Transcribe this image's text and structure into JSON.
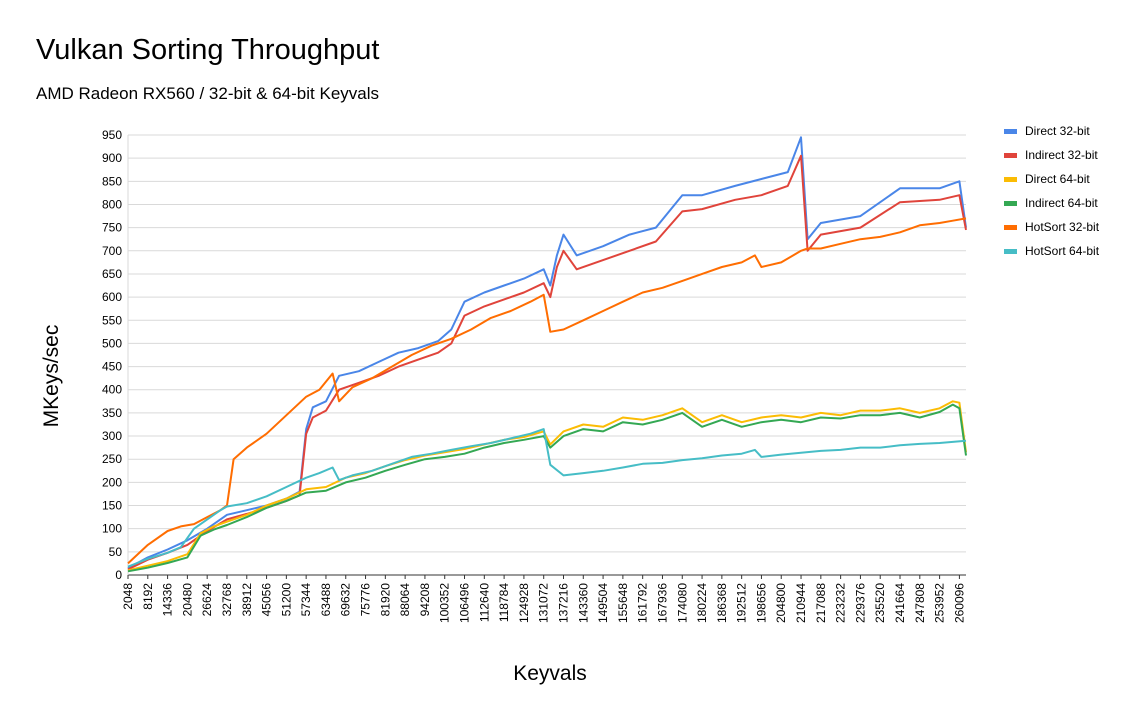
{
  "chart_data": {
    "type": "line",
    "title": "Vulkan Sorting Throughput",
    "subtitle": "AMD Radeon RX560 / 32-bit & 64-bit Keyvals",
    "xlabel": "Keyvals",
    "ylabel": "MKeys/sec",
    "ylim": [
      0,
      950
    ],
    "yticks": [
      0,
      50,
      100,
      150,
      200,
      250,
      300,
      350,
      400,
      450,
      500,
      550,
      600,
      650,
      700,
      750,
      800,
      850,
      900,
      950
    ],
    "x_range": [
      2048,
      262144
    ],
    "x_step": 2048,
    "xtick_labels": [
      "2048",
      "8192",
      "14336",
      "20480",
      "26624",
      "32768",
      "38912",
      "45056",
      "51200",
      "57344",
      "63488",
      "69632",
      "75776",
      "81920",
      "88064",
      "94208",
      "100352",
      "106496",
      "112640",
      "118784",
      "124928",
      "131072",
      "137216",
      "143360",
      "149504",
      "155648",
      "161792",
      "167936",
      "174080",
      "180224",
      "186368",
      "192512",
      "198656",
      "204800",
      "210944",
      "217088",
      "223232",
      "229376",
      "235520",
      "241664",
      "247808",
      "253952",
      "260096"
    ],
    "grid": true,
    "legend_position": "right",
    "series": [
      {
        "name": "Direct 32-bit",
        "color": "#4a86e8",
        "points": [
          [
            2048,
            15
          ],
          [
            8192,
            38
          ],
          [
            14336,
            55
          ],
          [
            20480,
            75
          ],
          [
            26624,
            100
          ],
          [
            32768,
            130
          ],
          [
            38912,
            140
          ],
          [
            45056,
            150
          ],
          [
            51200,
            165
          ],
          [
            55296,
            180
          ],
          [
            57344,
            315
          ],
          [
            59392,
            362
          ],
          [
            63488,
            375
          ],
          [
            67584,
            430
          ],
          [
            73728,
            440
          ],
          [
            79872,
            460
          ],
          [
            86016,
            480
          ],
          [
            92160,
            490
          ],
          [
            98304,
            505
          ],
          [
            102400,
            530
          ],
          [
            106496,
            590
          ],
          [
            112640,
            610
          ],
          [
            118784,
            625
          ],
          [
            124928,
            640
          ],
          [
            131072,
            660
          ],
          [
            133120,
            625
          ],
          [
            135168,
            690
          ],
          [
            137216,
            735
          ],
          [
            141312,
            690
          ],
          [
            149504,
            710
          ],
          [
            157696,
            735
          ],
          [
            165888,
            750
          ],
          [
            174080,
            820
          ],
          [
            180224,
            820
          ],
          [
            190464,
            840
          ],
          [
            198656,
            855
          ],
          [
            206848,
            870
          ],
          [
            210944,
            945
          ],
          [
            212992,
            725
          ],
          [
            217088,
            760
          ],
          [
            229376,
            775
          ],
          [
            241664,
            835
          ],
          [
            253952,
            835
          ],
          [
            260096,
            850
          ],
          [
            262144,
            750
          ]
        ]
      },
      {
        "name": "Indirect 32-bit",
        "color": "#e0443b",
        "points": [
          [
            2048,
            12
          ],
          [
            8192,
            33
          ],
          [
            14336,
            48
          ],
          [
            20480,
            65
          ],
          [
            26624,
            95
          ],
          [
            32768,
            120
          ],
          [
            38912,
            132
          ],
          [
            45056,
            145
          ],
          [
            51200,
            160
          ],
          [
            55296,
            172
          ],
          [
            57344,
            305
          ],
          [
            59392,
            340
          ],
          [
            63488,
            355
          ],
          [
            67584,
            400
          ],
          [
            73728,
            415
          ],
          [
            79872,
            430
          ],
          [
            86016,
            450
          ],
          [
            92160,
            465
          ],
          [
            98304,
            480
          ],
          [
            102400,
            500
          ],
          [
            106496,
            560
          ],
          [
            112640,
            580
          ],
          [
            118784,
            595
          ],
          [
            124928,
            610
          ],
          [
            131072,
            630
          ],
          [
            133120,
            600
          ],
          [
            135168,
            665
          ],
          [
            137216,
            700
          ],
          [
            141312,
            660
          ],
          [
            149504,
            680
          ],
          [
            157696,
            700
          ],
          [
            165888,
            720
          ],
          [
            174080,
            785
          ],
          [
            180224,
            790
          ],
          [
            190464,
            810
          ],
          [
            198656,
            820
          ],
          [
            206848,
            840
          ],
          [
            210944,
            905
          ],
          [
            212992,
            700
          ],
          [
            217088,
            735
          ],
          [
            229376,
            750
          ],
          [
            241664,
            805
          ],
          [
            253952,
            810
          ],
          [
            260096,
            820
          ],
          [
            262144,
            745
          ]
        ]
      },
      {
        "name": "Direct 64-bit",
        "color": "#fbbc04",
        "points": [
          [
            2048,
            10
          ],
          [
            8192,
            20
          ],
          [
            14336,
            30
          ],
          [
            20480,
            45
          ],
          [
            24576,
            90
          ],
          [
            28672,
            105
          ],
          [
            32768,
            115
          ],
          [
            38912,
            130
          ],
          [
            45056,
            150
          ],
          [
            51200,
            165
          ],
          [
            57344,
            185
          ],
          [
            63488,
            190
          ],
          [
            69632,
            210
          ],
          [
            75776,
            220
          ],
          [
            81920,
            235
          ],
          [
            88064,
            248
          ],
          [
            94208,
            258
          ],
          [
            100352,
            265
          ],
          [
            106496,
            272
          ],
          [
            112640,
            282
          ],
          [
            118784,
            292
          ],
          [
            124928,
            298
          ],
          [
            131072,
            310
          ],
          [
            133120,
            282
          ],
          [
            137216,
            310
          ],
          [
            143360,
            325
          ],
          [
            149504,
            320
          ],
          [
            155648,
            340
          ],
          [
            161792,
            335
          ],
          [
            167936,
            345
          ],
          [
            174080,
            360
          ],
          [
            180224,
            330
          ],
          [
            186368,
            345
          ],
          [
            192512,
            330
          ],
          [
            198656,
            340
          ],
          [
            204800,
            345
          ],
          [
            210944,
            340
          ],
          [
            217088,
            350
          ],
          [
            223232,
            345
          ],
          [
            229376,
            355
          ],
          [
            235520,
            355
          ],
          [
            241664,
            360
          ],
          [
            247808,
            350
          ],
          [
            253952,
            360
          ],
          [
            258048,
            375
          ],
          [
            260096,
            372
          ],
          [
            262144,
            265
          ]
        ]
      },
      {
        "name": "Indirect 64-bit",
        "color": "#34a853",
        "points": [
          [
            2048,
            8
          ],
          [
            8192,
            16
          ],
          [
            14336,
            26
          ],
          [
            20480,
            38
          ],
          [
            24576,
            85
          ],
          [
            28672,
            98
          ],
          [
            32768,
            108
          ],
          [
            38912,
            125
          ],
          [
            45056,
            145
          ],
          [
            51200,
            160
          ],
          [
            57344,
            178
          ],
          [
            63488,
            182
          ],
          [
            69632,
            200
          ],
          [
            75776,
            210
          ],
          [
            81920,
            225
          ],
          [
            88064,
            238
          ],
          [
            94208,
            250
          ],
          [
            100352,
            255
          ],
          [
            106496,
            262
          ],
          [
            112640,
            275
          ],
          [
            118784,
            285
          ],
          [
            124928,
            292
          ],
          [
            131072,
            300
          ],
          [
            133120,
            275
          ],
          [
            137216,
            300
          ],
          [
            143360,
            315
          ],
          [
            149504,
            310
          ],
          [
            155648,
            330
          ],
          [
            161792,
            325
          ],
          [
            167936,
            335
          ],
          [
            174080,
            350
          ],
          [
            180224,
            320
          ],
          [
            186368,
            335
          ],
          [
            192512,
            320
          ],
          [
            198656,
            330
          ],
          [
            204800,
            335
          ],
          [
            210944,
            330
          ],
          [
            217088,
            340
          ],
          [
            223232,
            338
          ],
          [
            229376,
            345
          ],
          [
            235520,
            345
          ],
          [
            241664,
            350
          ],
          [
            247808,
            340
          ],
          [
            253952,
            352
          ],
          [
            258048,
            368
          ],
          [
            260096,
            360
          ],
          [
            262144,
            258
          ]
        ]
      },
      {
        "name": "HotSort 32-bit",
        "color": "#ff6d01",
        "points": [
          [
            2048,
            25
          ],
          [
            8192,
            65
          ],
          [
            14336,
            95
          ],
          [
            18432,
            105
          ],
          [
            22528,
            110
          ],
          [
            26624,
            125
          ],
          [
            30720,
            140
          ],
          [
            32768,
            150
          ],
          [
            34816,
            250
          ],
          [
            38912,
            275
          ],
          [
            45056,
            305
          ],
          [
            51200,
            345
          ],
          [
            57344,
            385
          ],
          [
            61440,
            400
          ],
          [
            65536,
            435
          ],
          [
            67584,
            375
          ],
          [
            71680,
            405
          ],
          [
            77824,
            425
          ],
          [
            83968,
            450
          ],
          [
            90112,
            475
          ],
          [
            96256,
            495
          ],
          [
            102400,
            510
          ],
          [
            108544,
            530
          ],
          [
            114688,
            555
          ],
          [
            120832,
            570
          ],
          [
            126976,
            590
          ],
          [
            131072,
            605
          ],
          [
            133120,
            525
          ],
          [
            137216,
            530
          ],
          [
            143360,
            550
          ],
          [
            149504,
            570
          ],
          [
            155648,
            590
          ],
          [
            161792,
            610
          ],
          [
            167936,
            620
          ],
          [
            174080,
            635
          ],
          [
            180224,
            650
          ],
          [
            186368,
            665
          ],
          [
            192512,
            675
          ],
          [
            196608,
            690
          ],
          [
            198656,
            665
          ],
          [
            204800,
            675
          ],
          [
            210944,
            700
          ],
          [
            212992,
            705
          ],
          [
            217088,
            705
          ],
          [
            223232,
            715
          ],
          [
            229376,
            725
          ],
          [
            235520,
            730
          ],
          [
            241664,
            740
          ],
          [
            247808,
            755
          ],
          [
            253952,
            760
          ],
          [
            258048,
            765
          ],
          [
            262144,
            770
          ]
        ]
      },
      {
        "name": "HotSort 64-bit",
        "color": "#46bdc6",
        "points": [
          [
            2048,
            18
          ],
          [
            8192,
            35
          ],
          [
            14336,
            48
          ],
          [
            18432,
            60
          ],
          [
            22528,
            100
          ],
          [
            26624,
            120
          ],
          [
            30720,
            140
          ],
          [
            32768,
            148
          ],
          [
            38912,
            155
          ],
          [
            45056,
            170
          ],
          [
            51200,
            190
          ],
          [
            57344,
            210
          ],
          [
            61440,
            220
          ],
          [
            65536,
            232
          ],
          [
            67584,
            205
          ],
          [
            71680,
            215
          ],
          [
            77824,
            225
          ],
          [
            83968,
            240
          ],
          [
            90112,
            255
          ],
          [
            96256,
            262
          ],
          [
            102400,
            270
          ],
          [
            108544,
            278
          ],
          [
            114688,
            285
          ],
          [
            120832,
            295
          ],
          [
            126976,
            305
          ],
          [
            131072,
            315
          ],
          [
            133120,
            238
          ],
          [
            137216,
            215
          ],
          [
            143360,
            220
          ],
          [
            149504,
            225
          ],
          [
            155648,
            232
          ],
          [
            161792,
            240
          ],
          [
            167936,
            242
          ],
          [
            174080,
            248
          ],
          [
            180224,
            252
          ],
          [
            186368,
            258
          ],
          [
            192512,
            262
          ],
          [
            196608,
            270
          ],
          [
            198656,
            255
          ],
          [
            204800,
            260
          ],
          [
            210944,
            264
          ],
          [
            217088,
            268
          ],
          [
            223232,
            270
          ],
          [
            229376,
            275
          ],
          [
            235520,
            275
          ],
          [
            241664,
            280
          ],
          [
            247808,
            283
          ],
          [
            253952,
            285
          ],
          [
            262144,
            290
          ]
        ]
      }
    ]
  }
}
